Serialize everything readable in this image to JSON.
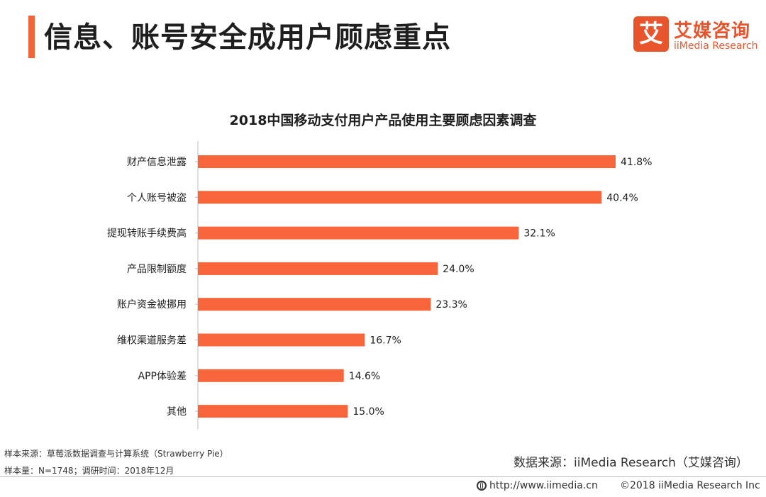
{
  "page": {
    "title": "信息、账号安全成用户顾虑重点",
    "accent_color": "#f0653a"
  },
  "logo": {
    "mark": "艾",
    "cn": "艾媒咨询",
    "en": "iiMedia Research",
    "color": "#e8552c"
  },
  "chart_data": {
    "type": "bar",
    "orientation": "horizontal",
    "title": "2018中国移动支付用户产品使用主要顾虑因素调查",
    "categories": [
      "财产信息泄露",
      "个人账号被盗",
      "提现转账手续费高",
      "产品限制额度",
      "账户资金被挪用",
      "维权渠道服务差",
      "APP体验差",
      "其他"
    ],
    "values": [
      41.8,
      40.4,
      32.1,
      24.0,
      23.3,
      16.7,
      14.6,
      15.0
    ],
    "labels": [
      "41.8%",
      "40.4%",
      "32.1%",
      "24.0%",
      "23.3%",
      "16.7%",
      "14.6%",
      "15.0%"
    ],
    "unit": "%",
    "bar_color": "#f8653a",
    "grid": false
  },
  "footer": {
    "sample_source": "样本来源：草莓派数据调查与计算系统（Strawberry Pie）",
    "sample_size": "样本量：N=1748；调研时间：2018年12月",
    "data_source": "数据来源：iiMedia Research（艾媒咨询）",
    "url": "http://www.iimedia.cn",
    "copyright": "©2018  iiMedia Research  Inc"
  }
}
